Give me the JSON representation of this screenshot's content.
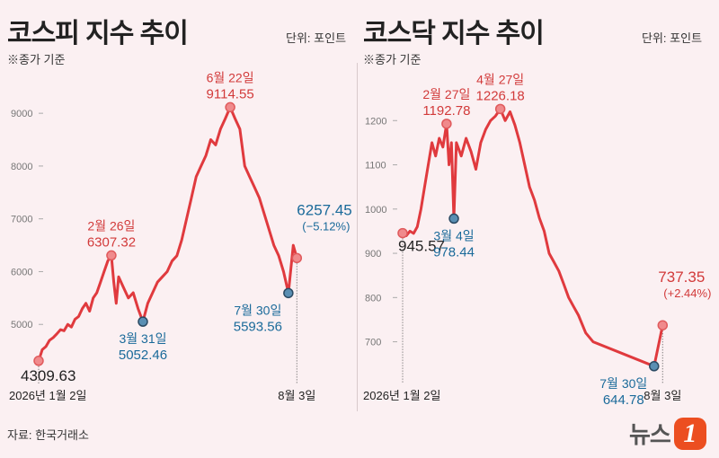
{
  "source": "자료: 한국거래소",
  "logo": {
    "text": "뉴스",
    "mark": "1"
  },
  "colors": {
    "line": "#e03a3e",
    "high_label": "#d23a3a",
    "low_label": "#1a6a9a",
    "low_dot": "#2b4a63",
    "axis_text": "#777777"
  },
  "chart_data": [
    {
      "type": "line",
      "title": "코스피 지수 추이",
      "unit": "단위: 포인트",
      "note": "※종가 기준",
      "ylim": [
        4000,
        9700
      ],
      "yticks": [
        5000,
        6000,
        7000,
        8000,
        9000
      ],
      "x_range": [
        0,
        215
      ],
      "x_labels": [
        {
          "x": 0,
          "label": "2026년 1월 2일"
        },
        {
          "x": 213,
          "label": "8월 3일"
        }
      ],
      "series": [
        {
          "values": [
            4309.63,
            4520,
            4580,
            4700,
            4750,
            4820,
            4900,
            4880,
            5000,
            4950,
            5100,
            5150,
            5300,
            5400,
            5250,
            5500,
            5600,
            5800,
            6000,
            6200,
            6307.32,
            5800,
            5400,
            5900,
            5700,
            5500,
            5600,
            5300,
            5052.46,
            5400,
            5600,
            5800,
            5900,
            6000,
            6200,
            6300,
            6600,
            7000,
            7400,
            7800,
            8000,
            8200,
            8500,
            8400,
            8700,
            8900,
            9114.55,
            8900,
            8700,
            8000,
            7800,
            7600,
            7400,
            7100,
            6800,
            6500,
            6300,
            6000,
            5593.56,
            6500,
            6257.45
          ]
        }
      ],
      "x": [
        0,
        3,
        6,
        9,
        12,
        15,
        18,
        21,
        24,
        27,
        30,
        33,
        36,
        39,
        42,
        45,
        48,
        51,
        54,
        57,
        60,
        62,
        64,
        66,
        70,
        74,
        78,
        82,
        86,
        90,
        94,
        98,
        102,
        106,
        110,
        114,
        118,
        122,
        126,
        130,
        134,
        138,
        142,
        146,
        150,
        154,
        158,
        162,
        166,
        170,
        174,
        178,
        182,
        186,
        190,
        194,
        198,
        202,
        206,
        210,
        213
      ],
      "annotations": [
        {
          "x": 0,
          "y": 4309.63,
          "date": "",
          "value": "4309.63",
          "kind": "start"
        },
        {
          "x": 60,
          "y": 6307.32,
          "date": "2월 26일",
          "value": "6307.32",
          "kind": "high"
        },
        {
          "x": 86,
          "y": 5052.46,
          "date": "3월 31일",
          "value": "5052.46",
          "kind": "low"
        },
        {
          "x": 158,
          "y": 9114.55,
          "date": "6월 22일",
          "value": "9114.55",
          "kind": "high"
        },
        {
          "x": 206,
          "y": 5593.56,
          "date": "7월 30일",
          "value": "5593.56",
          "kind": "low"
        },
        {
          "x": 213,
          "y": 6257.45,
          "date": "",
          "value": "6257.45",
          "change": "(−5.12%)",
          "kind": "last"
        }
      ]
    },
    {
      "type": "line",
      "title": "코스닥 지수 추이",
      "unit": "단위: 포인트",
      "note": "※종가 기준",
      "ylim": [
        620,
        1300
      ],
      "yticks": [
        700,
        800,
        900,
        1000,
        1100,
        1200
      ],
      "x_range": [
        0,
        215
      ],
      "x_labels": [
        {
          "x": 0,
          "label": "2026년 1월 2일"
        },
        {
          "x": 213,
          "label": "8월 3일"
        }
      ],
      "series": [
        {
          "values": [
            945.57,
            940,
            950,
            945,
            960,
            1000,
            1050,
            1100,
            1150,
            1120,
            1160,
            1140,
            1192.78,
            1100,
            1150,
            978.44,
            1150,
            1120,
            1160,
            1130,
            1090,
            1150,
            1180,
            1200,
            1210,
            1226.18,
            1200,
            1220,
            1190,
            1150,
            1100,
            1050,
            1020,
            980,
            950,
            900,
            880,
            860,
            830,
            800,
            780,
            760,
            720,
            700,
            644.78,
            737.35
          ]
        }
      ],
      "x": [
        0,
        3,
        6,
        9,
        12,
        15,
        18,
        21,
        24,
        27,
        30,
        33,
        36,
        38,
        40,
        42,
        44,
        48,
        52,
        56,
        60,
        64,
        68,
        72,
        76,
        80,
        84,
        88,
        92,
        96,
        100,
        104,
        108,
        112,
        116,
        120,
        124,
        128,
        132,
        136,
        140,
        144,
        150,
        156,
        206,
        213
      ],
      "annotations": [
        {
          "x": 0,
          "y": 945.57,
          "date": "",
          "value": "945.57",
          "kind": "start"
        },
        {
          "x": 36,
          "y": 1192.78,
          "date": "2월 27일",
          "value": "1192.78",
          "kind": "high"
        },
        {
          "x": 42,
          "y": 978.44,
          "date": "3월 4일",
          "value": "978.44",
          "kind": "low"
        },
        {
          "x": 80,
          "y": 1226.18,
          "date": "4월 27일",
          "value": "1226.18",
          "kind": "high"
        },
        {
          "x": 206,
          "y": 644.78,
          "date": "7월 30일",
          "value": "644.78",
          "kind": "low"
        },
        {
          "x": 213,
          "y": 737.35,
          "date": "",
          "value": "737.35",
          "change": "(+2.44%)",
          "kind": "last"
        }
      ]
    }
  ]
}
